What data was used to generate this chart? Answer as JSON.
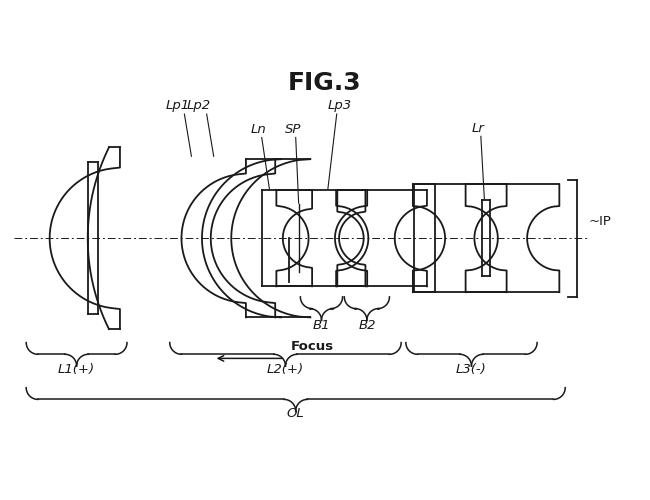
{
  "title": "FIG.3",
  "bg_color": "#ffffff",
  "line_color": "#1a1a1a",
  "lw": 1.3,
  "optical_axis_y": 0.0,
  "figsize": [
    6.5,
    5.0
  ],
  "dpi": 100,
  "xlim": [
    -0.5,
    10.5
  ],
  "ylim": [
    -3.2,
    2.8
  ]
}
